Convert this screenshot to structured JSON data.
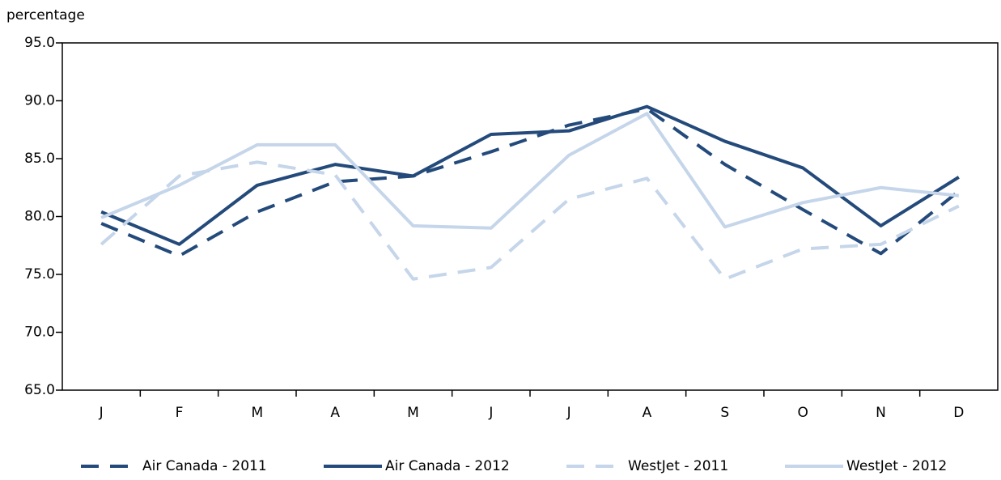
{
  "chart_data": {
    "type": "line",
    "y_label": "percentage",
    "categories": [
      "J",
      "F",
      "M",
      "A",
      "M",
      "J",
      "J",
      "A",
      "S",
      "O",
      "N",
      "D"
    ],
    "series": [
      {
        "name": "Air Canada - 2011",
        "color": "#234a7a",
        "dashed": true,
        "values": [
          79.4,
          76.6,
          80.4,
          83.0,
          83.5,
          85.6,
          87.9,
          89.3,
          84.5,
          80.6,
          76.8,
          82.2
        ]
      },
      {
        "name": "Air Canada - 2012",
        "color": "#234a7a",
        "dashed": false,
        "values": [
          80.4,
          77.6,
          82.7,
          84.5,
          83.5,
          87.1,
          87.4,
          89.5,
          86.5,
          84.2,
          79.2,
          83.4
        ]
      },
      {
        "name": "WestJet - 2011",
        "color": "#c5d5ea",
        "dashed": true,
        "values": [
          77.6,
          83.5,
          84.7,
          83.6,
          74.6,
          75.6,
          81.5,
          83.3,
          74.6,
          77.2,
          77.6,
          80.9
        ]
      },
      {
        "name": "WestJet - 2012",
        "color": "#c5d5ea",
        "dashed": false,
        "values": [
          79.9,
          82.7,
          86.2,
          86.2,
          79.2,
          79.0,
          85.3,
          88.9,
          79.1,
          81.2,
          82.5,
          81.8
        ]
      }
    ],
    "ylim": [
      65,
      95
    ],
    "yticks": [
      {
        "value": 65,
        "label": "65.0"
      },
      {
        "value": 70,
        "label": "70.0"
      },
      {
        "value": 75,
        "label": "75.0"
      },
      {
        "value": 80,
        "label": "80.0"
      },
      {
        "value": 85,
        "label": "85.0"
      },
      {
        "value": 90,
        "label": "90.0"
      },
      {
        "value": 95,
        "label": "95.0"
      }
    ],
    "grid": false,
    "legend": "bottom"
  }
}
